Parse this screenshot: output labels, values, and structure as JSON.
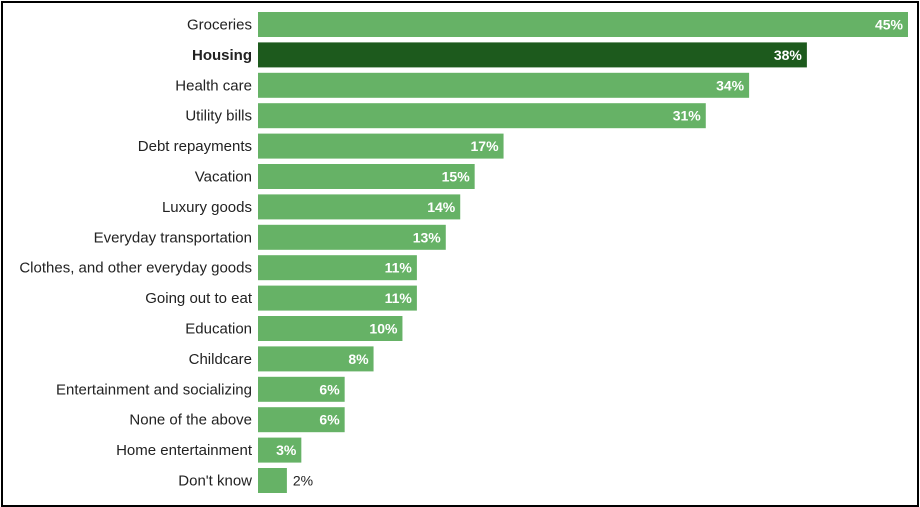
{
  "chart_data": {
    "type": "bar",
    "orientation": "horizontal",
    "categories": [
      "Groceries",
      "Housing",
      "Health care",
      "Utility bills",
      "Debt repayments",
      "Vacation",
      "Luxury goods",
      "Everyday transportation",
      "Clothes, and other everyday goods",
      "Going out to eat",
      "Education",
      "Childcare",
      "Entertainment and socializing",
      "None of the above",
      "Home entertainment",
      "Don't know"
    ],
    "values": [
      45,
      38,
      34,
      31,
      17,
      15,
      14,
      13,
      11,
      11,
      10,
      8,
      6,
      6,
      3,
      2
    ],
    "value_labels": [
      "45%",
      "38%",
      "34%",
      "31%",
      "17%",
      "15%",
      "14%",
      "13%",
      "11%",
      "11%",
      "10%",
      "8%",
      "6%",
      "6%",
      "3%",
      "2%"
    ],
    "highlight_category": "Housing",
    "colors": {
      "bar": "#66b266",
      "highlight": "#1d5a1d",
      "label_inside": "#ffffff",
      "label_outside": "#222222"
    },
    "title": "",
    "xlabel": "",
    "ylabel": "",
    "xlim": [
      0,
      45
    ],
    "grid": false,
    "legend": "none"
  }
}
